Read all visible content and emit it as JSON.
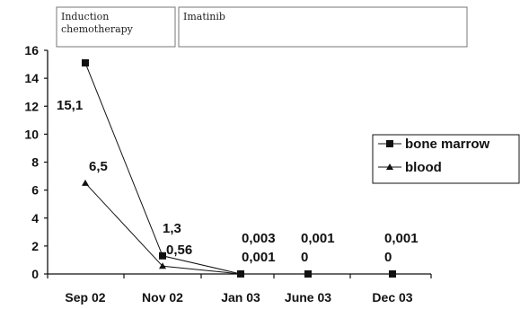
{
  "chart_data": {
    "type": "line",
    "title": "",
    "xlabel": "",
    "ylabel": "",
    "categories": [
      "Sep 02",
      "Nov 02",
      "Jan 03",
      "June 03",
      "Dec 03"
    ],
    "ylim": [
      0,
      16
    ],
    "yticks": [
      0,
      2,
      4,
      6,
      8,
      10,
      12,
      14,
      16
    ],
    "grid": false,
    "legend_position": "right",
    "series": [
      {
        "name": "bone marrow",
        "marker": "square",
        "values": [
          15.1,
          1.3,
          0.003,
          0.001,
          0.001
        ]
      },
      {
        "name": "blood",
        "marker": "triangle",
        "values": [
          6.5,
          0.56,
          0.001,
          0,
          0
        ]
      }
    ],
    "phases": [
      {
        "label_lines": [
          "Induction",
          "chemotherapy"
        ],
        "from": "Sep 02",
        "to": "Nov 02"
      },
      {
        "label_lines": [
          "Imatinib"
        ],
        "from": "Nov 02",
        "to": "Dec 03"
      }
    ],
    "annotations": [
      {
        "text": "15,1",
        "series": "bone marrow",
        "category": "Sep 02"
      },
      {
        "text": "6,5",
        "series": "blood",
        "category": "Sep 02"
      },
      {
        "text": "1,3",
        "series": "bone marrow",
        "category": "Nov 02"
      },
      {
        "text": "0,56",
        "series": "blood",
        "category": "Nov 02"
      },
      {
        "text": "0,003",
        "series": "bone marrow",
        "category": "Jan 03"
      },
      {
        "text": "0,001",
        "series": "blood",
        "category": "Jan 03"
      },
      {
        "text": "0,001",
        "series": "bone marrow",
        "category": "June 03"
      },
      {
        "text": "0",
        "series": "blood",
        "category": "June 03"
      },
      {
        "text": "0,001",
        "series": "bone marrow",
        "category": "Dec 03"
      },
      {
        "text": "0",
        "series": "blood",
        "category": "Dec 03"
      }
    ],
    "colors": {
      "line": "#111111",
      "axis": "#111111",
      "box_border": "#777777"
    }
  }
}
